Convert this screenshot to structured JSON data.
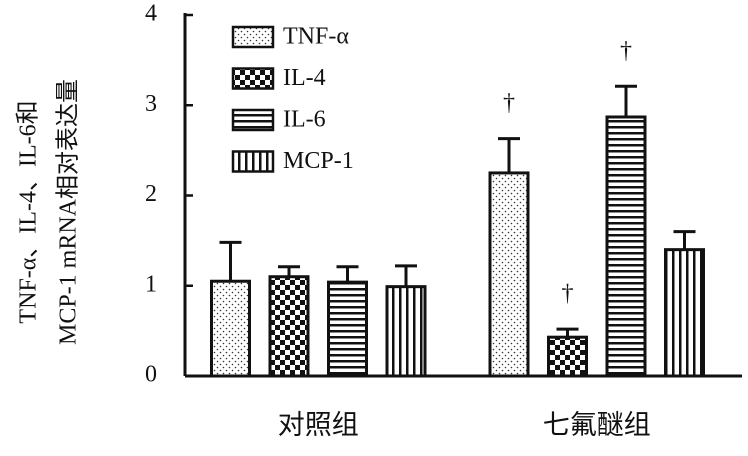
{
  "chart_data": {
    "type": "bar",
    "ylabel": [
      "TNF-α、IL-4、IL-6和",
      "MCP-1 mRNA相对表达量"
    ],
    "categories": [
      "对照组",
      "七氟醚组"
    ],
    "series": [
      {
        "name": "TNF-α",
        "pattern": "dots",
        "values": [
          1.05,
          2.25
        ],
        "errors": [
          0.43,
          0.38
        ],
        "annotations": [
          null,
          "†"
        ]
      },
      {
        "name": "IL-4",
        "pattern": "checker",
        "values": [
          1.1,
          0.43
        ],
        "errors": [
          0.11,
          0.09
        ],
        "annotations": [
          null,
          "†"
        ]
      },
      {
        "name": "IL-6",
        "pattern": "hstripes",
        "values": [
          1.04,
          2.87
        ],
        "errors": [
          0.17,
          0.34
        ],
        "annotations": [
          null,
          "†"
        ]
      },
      {
        "name": "MCP-1",
        "pattern": "vstripes",
        "values": [
          0.99,
          1.4
        ],
        "errors": [
          0.23,
          0.2
        ],
        "annotations": [
          null,
          null
        ]
      }
    ],
    "ylim": [
      0,
      4
    ],
    "yticks": [
      0,
      1,
      2,
      3,
      4
    ],
    "legend": "upper left"
  }
}
